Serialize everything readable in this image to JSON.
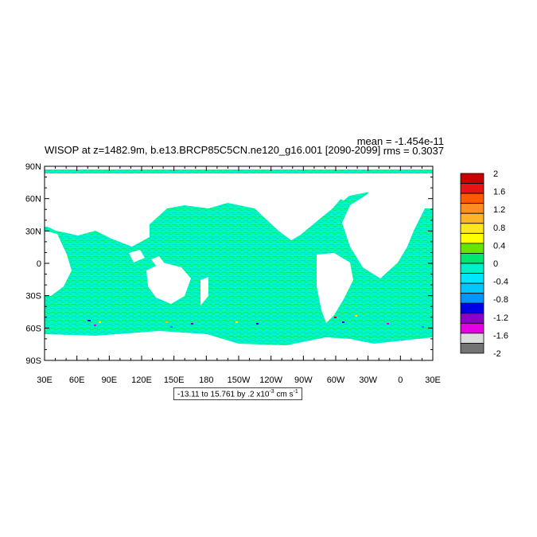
{
  "title": "WISOP at z=1482.9m, b.e13.BRCP85C5CN.ne120_g16.001 [2090-2099]",
  "stats": {
    "mean_label": "mean =",
    "mean_value": "-1.454e-11",
    "rms_label": "rms =",
    "rms_value": "0.3037"
  },
  "axes": {
    "lat_labels": [
      "90N",
      "60N",
      "30N",
      "0",
      "30S",
      "60S",
      "90S"
    ],
    "lon_labels": [
      "30E",
      "60E",
      "90E",
      "120E",
      "150E",
      "180",
      "150W",
      "120W",
      "90W",
      "60W",
      "30W",
      "0",
      "30E"
    ]
  },
  "contour_info": {
    "range_text": "-13.11 to 15.761 by .2 x10",
    "exponent": "-3",
    "unit_text": " cm s",
    "unit_exponent": "-1"
  },
  "colorbar": {
    "labels": [
      "2",
      "1.6",
      "1.2",
      "0.8",
      "0.4",
      "0",
      "-0.4",
      "-0.8",
      "-1.2",
      "-1.6",
      "-2"
    ],
    "colors_top_to_bottom": [
      "#c80000",
      "#e61414",
      "#ff5a00",
      "#ff8c1e",
      "#ffb428",
      "#ffe61e",
      "#ffff00",
      "#64e600",
      "#00e66e",
      "#00f0c8",
      "#00e6ff",
      "#00c8ff",
      "#0096ff",
      "#0000e6",
      "#8c00c8",
      "#e600e6",
      "#dcdcdc",
      "#737373"
    ]
  },
  "field": {
    "ocean_color": "#00f5c8",
    "mixed_color": "#00e87a",
    "land_color": "#ffffff"
  }
}
